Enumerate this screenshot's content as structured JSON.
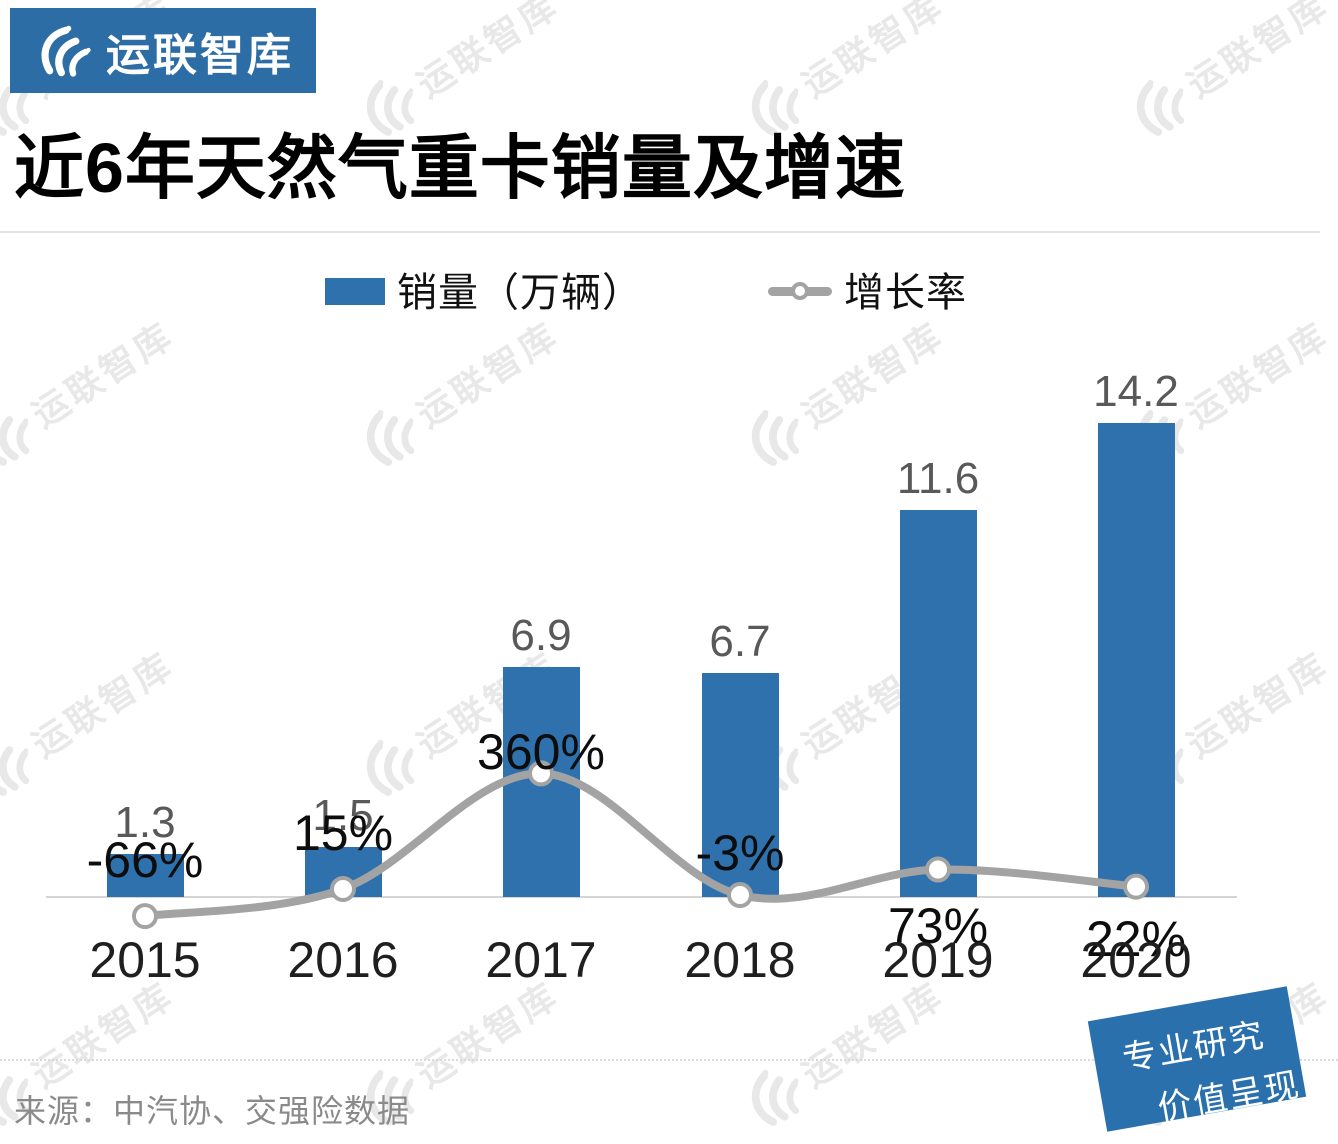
{
  "brand": {
    "logo_text": "运联智库",
    "tagline_line1": "专业研究",
    "tagline_line2": "价值呈现"
  },
  "title": "近6年天然气重卡销量及增速",
  "legend": {
    "sales_label": "销量（万辆）",
    "growth_label": "增长率"
  },
  "chart_data": {
    "type": "bar+line",
    "title": "近6年天然气重卡销量及增速",
    "categories": [
      "2015",
      "2016",
      "2017",
      "2018",
      "2019",
      "2020"
    ],
    "series": [
      {
        "name": "销量（万辆）",
        "type": "bar",
        "unit": "万辆",
        "values": [
          1.3,
          1.5,
          6.9,
          6.7,
          11.6,
          14.2
        ],
        "labels": [
          "1.3",
          "1.5",
          "6.9",
          "6.7",
          "11.6",
          "14.2"
        ],
        "color": "#2e71ad",
        "label_color": "#595959"
      },
      {
        "name": "增长率",
        "type": "line",
        "unit": "%",
        "values": [
          -66,
          15,
          360,
          -3,
          73,
          22
        ],
        "labels": [
          "-66%",
          "15%",
          "360%",
          "-3%",
          "73%",
          "22%"
        ],
        "label_side": [
          "above",
          "above",
          "above",
          "above",
          "below",
          "below"
        ],
        "color": "#a3a3a3",
        "marker": "circle-white-fill"
      }
    ],
    "legend_position": "top",
    "gridlines": false,
    "y_axis_visible": false,
    "axis_color": "#d5d5d5"
  },
  "source": "来源：中汽协、交强险数据",
  "watermark": {
    "text": "运联智库"
  },
  "colors": {
    "brand_blue": "#2d6da5",
    "bar_blue": "#2e71ad",
    "line_gray": "#a3a3a3",
    "axis_gray": "#d5d5d5",
    "value_label_gray": "#595959",
    "text_black": "#0d0d0d",
    "source_gray": "#8a8a8a",
    "watermark_gray": "#e8e8e8"
  }
}
